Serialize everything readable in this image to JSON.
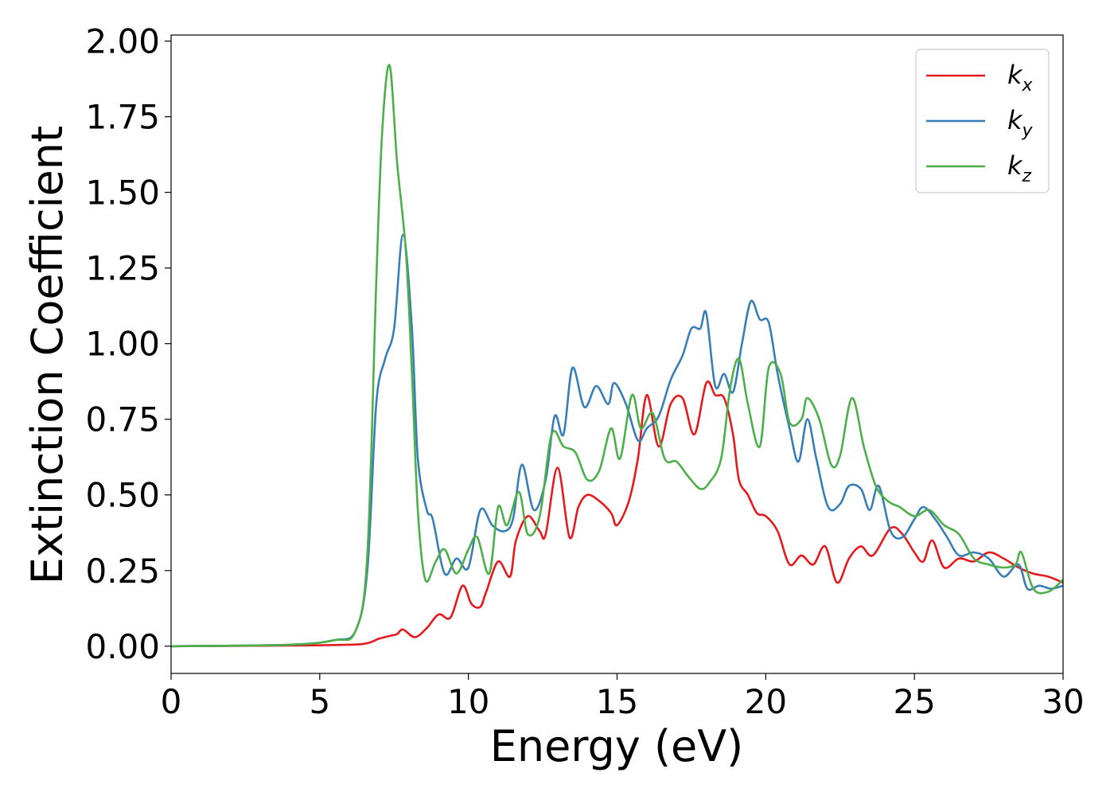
{
  "chart_data": {
    "type": "line",
    "xlabel": "Energy (eV)",
    "ylabel": "Extinction Coefficient",
    "xlim": [
      0,
      30
    ],
    "ylim": [
      -0.09,
      2.02
    ],
    "xticks": [
      "0",
      "5",
      "10",
      "15",
      "20",
      "25",
      "30"
    ],
    "yticks": [
      "0.00",
      "0.25",
      "0.50",
      "0.75",
      "1.00",
      "1.25",
      "1.50",
      "1.75",
      "2.00"
    ],
    "grid": false,
    "legend_position": "upper right",
    "series": [
      {
        "name": "k",
        "subscript": "x",
        "color": "#e41a1c",
        "points": [
          [
            0,
            0
          ],
          [
            4,
            0.002
          ],
          [
            6,
            0.005
          ],
          [
            6.6,
            0.01
          ],
          [
            7,
            0.025
          ],
          [
            7.4,
            0.035
          ],
          [
            7.6,
            0.04
          ],
          [
            7.8,
            0.055
          ],
          [
            8.2,
            0.03
          ],
          [
            8.6,
            0.06
          ],
          [
            9,
            0.105
          ],
          [
            9.4,
            0.095
          ],
          [
            9.8,
            0.2
          ],
          [
            10.1,
            0.14
          ],
          [
            10.4,
            0.13
          ],
          [
            10.6,
            0.18
          ],
          [
            11,
            0.28
          ],
          [
            11.4,
            0.23
          ],
          [
            11.6,
            0.35
          ],
          [
            12,
            0.43
          ],
          [
            12.4,
            0.38
          ],
          [
            12.6,
            0.37
          ],
          [
            13,
            0.59
          ],
          [
            13.4,
            0.36
          ],
          [
            13.7,
            0.46
          ],
          [
            14,
            0.5
          ],
          [
            14.4,
            0.48
          ],
          [
            14.8,
            0.44
          ],
          [
            15,
            0.4
          ],
          [
            15.4,
            0.48
          ],
          [
            15.7,
            0.62
          ],
          [
            16,
            0.83
          ],
          [
            16.4,
            0.66
          ],
          [
            16.8,
            0.8
          ],
          [
            17.2,
            0.82
          ],
          [
            17.6,
            0.7
          ],
          [
            18,
            0.87
          ],
          [
            18.3,
            0.83
          ],
          [
            18.6,
            0.82
          ],
          [
            18.9,
            0.7
          ],
          [
            19.1,
            0.55
          ],
          [
            19.4,
            0.5
          ],
          [
            19.7,
            0.44
          ],
          [
            20,
            0.43
          ],
          [
            20.4,
            0.38
          ],
          [
            20.8,
            0.27
          ],
          [
            21.2,
            0.3
          ],
          [
            21.6,
            0.27
          ],
          [
            22,
            0.33
          ],
          [
            22.4,
            0.21
          ],
          [
            22.8,
            0.29
          ],
          [
            23.2,
            0.33
          ],
          [
            23.6,
            0.3
          ],
          [
            24.2,
            0.39
          ],
          [
            24.6,
            0.37
          ],
          [
            25,
            0.31
          ],
          [
            25.3,
            0.28
          ],
          [
            25.6,
            0.35
          ],
          [
            26,
            0.26
          ],
          [
            26.5,
            0.29
          ],
          [
            27,
            0.28
          ],
          [
            27.5,
            0.31
          ],
          [
            28,
            0.29
          ],
          [
            28.5,
            0.26
          ],
          [
            29,
            0.24
          ],
          [
            29.5,
            0.23
          ],
          [
            30,
            0.21
          ]
        ]
      },
      {
        "name": "k",
        "subscript": "y",
        "color": "#377eb8",
        "points": [
          [
            0,
            0
          ],
          [
            4,
            0.005
          ],
          [
            5.5,
            0.02
          ],
          [
            6.2,
            0.05
          ],
          [
            6.6,
            0.25
          ],
          [
            6.9,
            0.8
          ],
          [
            7.2,
            0.95
          ],
          [
            7.5,
            1.05
          ],
          [
            7.8,
            1.36
          ],
          [
            8.1,
            1.05
          ],
          [
            8.3,
            0.62
          ],
          [
            8.6,
            0.45
          ],
          [
            8.8,
            0.42
          ],
          [
            9.2,
            0.24
          ],
          [
            9.6,
            0.29
          ],
          [
            10,
            0.26
          ],
          [
            10.4,
            0.45
          ],
          [
            10.8,
            0.4
          ],
          [
            11.2,
            0.38
          ],
          [
            11.5,
            0.42
          ],
          [
            11.8,
            0.6
          ],
          [
            12.2,
            0.45
          ],
          [
            12.6,
            0.55
          ],
          [
            12.9,
            0.76
          ],
          [
            13.2,
            0.7
          ],
          [
            13.5,
            0.92
          ],
          [
            13.9,
            0.79
          ],
          [
            14.3,
            0.86
          ],
          [
            14.7,
            0.8
          ],
          [
            14.9,
            0.87
          ],
          [
            15.3,
            0.8
          ],
          [
            15.7,
            0.68
          ],
          [
            16,
            0.72
          ],
          [
            16.4,
            0.76
          ],
          [
            16.8,
            0.88
          ],
          [
            17.2,
            0.96
          ],
          [
            17.5,
            1.05
          ],
          [
            17.8,
            1.05
          ],
          [
            18,
            1.1
          ],
          [
            18.3,
            0.86
          ],
          [
            18.6,
            0.9
          ],
          [
            18.9,
            0.84
          ],
          [
            19.2,
            1.0
          ],
          [
            19.5,
            1.14
          ],
          [
            19.8,
            1.08
          ],
          [
            20.1,
            1.07
          ],
          [
            20.4,
            0.9
          ],
          [
            20.8,
            0.72
          ],
          [
            21.1,
            0.61
          ],
          [
            21.4,
            0.75
          ],
          [
            21.7,
            0.62
          ],
          [
            22.1,
            0.46
          ],
          [
            22.5,
            0.47
          ],
          [
            22.8,
            0.53
          ],
          [
            23.2,
            0.52
          ],
          [
            23.5,
            0.45
          ],
          [
            23.8,
            0.53
          ],
          [
            24.2,
            0.38
          ],
          [
            24.6,
            0.36
          ],
          [
            25,
            0.42
          ],
          [
            25.3,
            0.46
          ],
          [
            25.7,
            0.42
          ],
          [
            26.1,
            0.36
          ],
          [
            26.5,
            0.3
          ],
          [
            27,
            0.31
          ],
          [
            27.5,
            0.29
          ],
          [
            28,
            0.23
          ],
          [
            28.5,
            0.27
          ],
          [
            28.8,
            0.19
          ],
          [
            29.2,
            0.2
          ],
          [
            29.6,
            0.19
          ],
          [
            30,
            0.2
          ]
        ]
      },
      {
        "name": "k",
        "subscript": "z",
        "color": "#4daf4a",
        "points": [
          [
            0,
            0
          ],
          [
            4,
            0.005
          ],
          [
            5.5,
            0.02
          ],
          [
            6.2,
            0.05
          ],
          [
            6.6,
            0.3
          ],
          [
            6.9,
            1.2
          ],
          [
            7.1,
            1.7
          ],
          [
            7.35,
            1.92
          ],
          [
            7.6,
            1.6
          ],
          [
            7.9,
            1.3
          ],
          [
            8.1,
            0.9
          ],
          [
            8.3,
            0.45
          ],
          [
            8.55,
            0.22
          ],
          [
            8.9,
            0.28
          ],
          [
            9.2,
            0.32
          ],
          [
            9.6,
            0.24
          ],
          [
            10,
            0.32
          ],
          [
            10.3,
            0.36
          ],
          [
            10.7,
            0.24
          ],
          [
            11,
            0.46
          ],
          [
            11.3,
            0.4
          ],
          [
            11.7,
            0.51
          ],
          [
            12,
            0.37
          ],
          [
            12.4,
            0.43
          ],
          [
            12.8,
            0.7
          ],
          [
            13.2,
            0.66
          ],
          [
            13.6,
            0.64
          ],
          [
            14,
            0.55
          ],
          [
            14.4,
            0.58
          ],
          [
            14.8,
            0.72
          ],
          [
            15.1,
            0.62
          ],
          [
            15.5,
            0.83
          ],
          [
            15.8,
            0.72
          ],
          [
            16.2,
            0.77
          ],
          [
            16.6,
            0.62
          ],
          [
            17,
            0.61
          ],
          [
            17.4,
            0.56
          ],
          [
            17.8,
            0.52
          ],
          [
            18.1,
            0.54
          ],
          [
            18.5,
            0.62
          ],
          [
            18.8,
            0.85
          ],
          [
            19.1,
            0.95
          ],
          [
            19.4,
            0.8
          ],
          [
            19.8,
            0.66
          ],
          [
            20.1,
            0.92
          ],
          [
            20.5,
            0.9
          ],
          [
            20.8,
            0.74
          ],
          [
            21.2,
            0.75
          ],
          [
            21.4,
            0.82
          ],
          [
            21.8,
            0.75
          ],
          [
            22.2,
            0.6
          ],
          [
            22.5,
            0.63
          ],
          [
            22.9,
            0.82
          ],
          [
            23.3,
            0.66
          ],
          [
            23.7,
            0.53
          ],
          [
            24.1,
            0.48
          ],
          [
            24.5,
            0.46
          ],
          [
            25,
            0.43
          ],
          [
            25.5,
            0.45
          ],
          [
            26,
            0.4
          ],
          [
            26.5,
            0.37
          ],
          [
            27,
            0.29
          ],
          [
            27.5,
            0.27
          ],
          [
            28,
            0.26
          ],
          [
            28.4,
            0.27
          ],
          [
            28.6,
            0.31
          ],
          [
            29,
            0.19
          ],
          [
            29.5,
            0.18
          ],
          [
            30,
            0.22
          ]
        ]
      }
    ]
  }
}
